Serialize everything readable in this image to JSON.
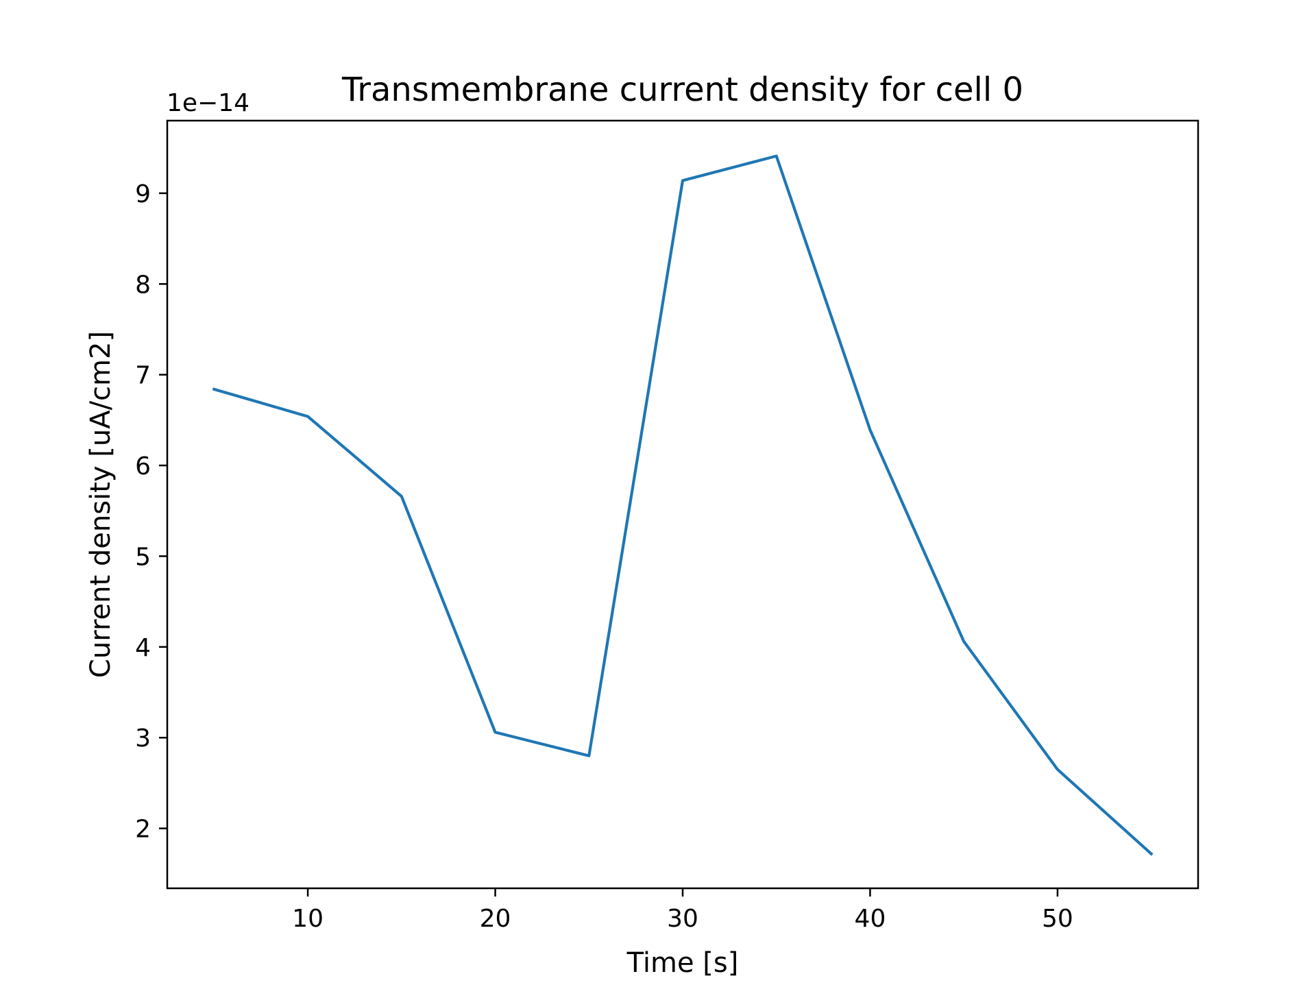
{
  "chart_data": {
    "type": "line",
    "title": "Transmembrane current density for cell 0",
    "xlabel": "Time [s]",
    "ylabel": "Current density [uA/cm2]",
    "y_offset_label": "1e−14",
    "xlim": [
      2.5,
      57.5
    ],
    "ylim": [
      1.34,
      9.8
    ],
    "xticks": [
      10,
      20,
      30,
      40,
      50
    ],
    "xtick_labels": [
      "10",
      "20",
      "30",
      "40",
      "50"
    ],
    "yticks": [
      2,
      3,
      4,
      5,
      6,
      7,
      8,
      9
    ],
    "ytick_labels": [
      "2",
      "3",
      "4",
      "5",
      "6",
      "7",
      "8",
      "9"
    ],
    "grid": false,
    "series": [
      {
        "color": "#1f77b4",
        "x": [
          5,
          10,
          15,
          20,
          25,
          30,
          35,
          40,
          45,
          50,
          55
        ],
        "y": [
          6.84,
          6.54,
          5.66,
          3.06,
          2.8,
          9.14,
          9.41,
          6.39,
          4.06,
          2.65,
          1.72
        ]
      }
    ]
  }
}
